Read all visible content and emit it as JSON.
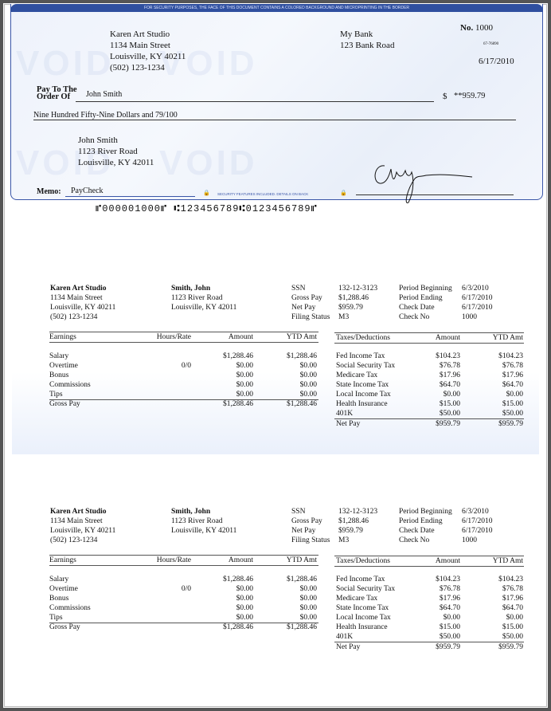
{
  "check": {
    "security_banner": "FOR SECURITY PURPOSES, THE FACE OF THIS DOCUMENT CONTAINS A COLORED BACKGROUND AND MICROPRINTING IN THE BORDER",
    "watermark": "VOID",
    "payer": [
      "Karen Art Studio",
      "1134 Main Street",
      "Louisville, KY 40211",
      "(502) 123-1234"
    ],
    "bank": [
      "My Bank",
      "123 Bank Road"
    ],
    "number_label": "No.",
    "number": "1000",
    "routing_fraction": "67-76890",
    "date": "6/17/2010",
    "pay_to_label_1": "Pay To The",
    "pay_to_label_2": "Order Of",
    "payee": "John Smith",
    "currency": "$",
    "amount": "**959.79",
    "amount_words": "Nine Hundred Fifty-Nine Dollars and 79/100",
    "payee_address": [
      "John Smith",
      "1123 River Road",
      "Louisville, KY 42011"
    ],
    "memo_label": "Memo:",
    "memo": "PayCheck",
    "security_note": "SECURITY FEATURES INCLUDED. DETAILS ON BACK",
    "micr": "⑈000001000⑈ ⑆123456789⑆0123456789⑈"
  },
  "stub": {
    "employer": [
      "Karen Art Studio",
      "1134 Main Street",
      "Louisville, KY 40211",
      "(502) 123-1234"
    ],
    "employee": [
      "Smith, John",
      "1123 River Road",
      "Louisville, KY 42011"
    ],
    "info_labels": [
      "SSN",
      "Gross Pay",
      "Net Pay",
      "Filing Status"
    ],
    "info_values": [
      "132-12-3123",
      "$1,288.46",
      "$959.79",
      "M3"
    ],
    "period_labels": [
      "Period Beginning",
      "Period Ending",
      "Check Date",
      "Check No"
    ],
    "period_values": [
      "6/3/2010",
      "6/17/2010",
      "6/17/2010",
      "1000"
    ],
    "earnings_headers": [
      "Earnings",
      "Hours/Rate",
      "Amount",
      "YTD Amt"
    ],
    "earnings_rows": [
      [
        "Salary",
        "",
        "$1,288.46",
        "$1,288.46"
      ],
      [
        "Overtime",
        "0/0",
        "$0.00",
        "$0.00"
      ],
      [
        "Bonus",
        "",
        "$0.00",
        "$0.00"
      ],
      [
        "Commissions",
        "",
        "$0.00",
        "$0.00"
      ],
      [
        "Tips",
        "",
        "$0.00",
        "$0.00"
      ]
    ],
    "earnings_total": [
      "Gross Pay",
      "",
      "$1,288.46",
      "$1,288.46"
    ],
    "deductions_headers": [
      "Taxes/Deductions",
      "Amount",
      "YTD Amt"
    ],
    "deductions_rows": [
      [
        "Fed Income Tax",
        "$104.23",
        "$104.23"
      ],
      [
        "Social Security Tax",
        "$76.78",
        "$76.78"
      ],
      [
        "Medicare Tax",
        "$17.96",
        "$17.96"
      ],
      [
        "State Income Tax",
        "$64.70",
        "$64.70"
      ],
      [
        "Local Income Tax",
        "$0.00",
        "$0.00"
      ],
      [
        "Health Insurance",
        "$15.00",
        "$15.00"
      ],
      [
        "401K",
        "$50.00",
        "$50.00"
      ]
    ],
    "deductions_total": [
      "Net Pay",
      "$959.79",
      "$959.79"
    ]
  }
}
